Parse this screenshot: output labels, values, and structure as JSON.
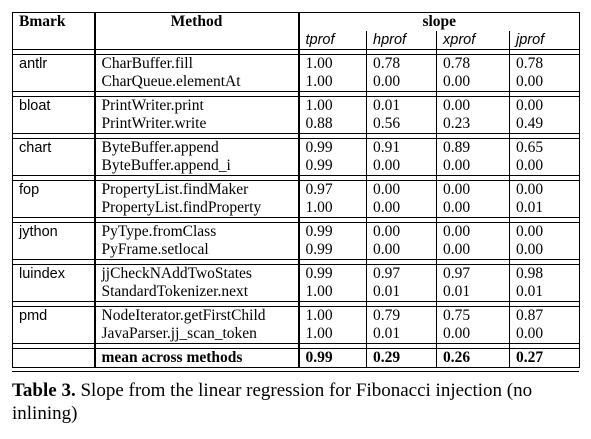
{
  "header": {
    "bmark": "Bmark",
    "method": "Method",
    "slope": "slope",
    "cols": [
      "tprof",
      "hprof",
      "xprof",
      "jprof"
    ]
  },
  "groups": [
    {
      "bmark": "antlr",
      "rows": [
        {
          "method": "CharBuffer.fill",
          "values": [
            "1.00",
            "0.78",
            "0.78",
            "0.78"
          ]
        },
        {
          "method": "CharQueue.elementAt",
          "values": [
            "1.00",
            "0.00",
            "0.00",
            "0.00"
          ]
        }
      ]
    },
    {
      "bmark": "bloat",
      "rows": [
        {
          "method": "PrintWriter.print",
          "values": [
            "1.00",
            "0.01",
            "0.00",
            "0.00"
          ]
        },
        {
          "method": "PrintWriter.write",
          "values": [
            "0.88",
            "0.56",
            "0.23",
            "0.49"
          ]
        }
      ]
    },
    {
      "bmark": "chart",
      "rows": [
        {
          "method": "ByteBuffer.append",
          "values": [
            "0.99",
            "0.91",
            "0.89",
            "0.65"
          ]
        },
        {
          "method": "ByteBuffer.append_i",
          "values": [
            "0.99",
            "0.00",
            "0.00",
            "0.00"
          ]
        }
      ]
    },
    {
      "bmark": "fop",
      "rows": [
        {
          "method": "PropertyList.findMaker",
          "values": [
            "0.97",
            "0.00",
            "0.00",
            "0.00"
          ]
        },
        {
          "method": "PropertyList.findProperty",
          "values": [
            "1.00",
            "0.00",
            "0.00",
            "0.01"
          ]
        }
      ]
    },
    {
      "bmark": "jython",
      "rows": [
        {
          "method": "PyType.fromClass",
          "values": [
            "0.99",
            "0.00",
            "0.00",
            "0.00"
          ]
        },
        {
          "method": "PyFrame.setlocal",
          "values": [
            "0.99",
            "0.00",
            "0.00",
            "0.00"
          ]
        }
      ]
    },
    {
      "bmark": "luindex",
      "rows": [
        {
          "method": "jjCheckNAddTwoStates",
          "values": [
            "0.99",
            "0.97",
            "0.97",
            "0.98"
          ]
        },
        {
          "method": "StandardTokenizer.next",
          "values": [
            "1.00",
            "0.01",
            "0.01",
            "0.01"
          ]
        }
      ]
    },
    {
      "bmark": "pmd",
      "rows": [
        {
          "method": "NodeIterator.getFirstChild",
          "values": [
            "1.00",
            "0.79",
            "0.75",
            "0.87"
          ]
        },
        {
          "method": "JavaParser.jj_scan_token",
          "values": [
            "1.00",
            "0.01",
            "0.00",
            "0.00"
          ]
        }
      ]
    }
  ],
  "mean": {
    "label": "mean across methods",
    "values": [
      "0.99",
      "0.29",
      "0.26",
      "0.27"
    ]
  },
  "caption": {
    "label": "Table 3.",
    "text": " Slope from the linear regression for Fibonacci injection (no inlining)"
  }
}
